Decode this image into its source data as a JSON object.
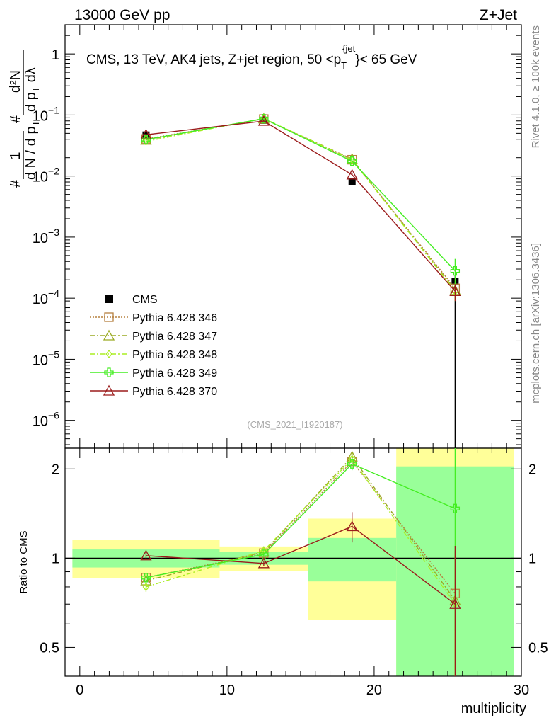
{
  "header": {
    "left": "13000 GeV pp",
    "right": "Z+Jet"
  },
  "side_notes": {
    "rivet": "Rivet 4.1.0, ≥ 100k events",
    "mcplots": "mcplots.cern.ch [arXiv:1306.3436]"
  },
  "analysis_tag": "(CMS_2021_I1920187)",
  "colors": {
    "data": "#000000",
    "p346": "#b5803f",
    "p347": "#9aaa22",
    "p348": "#aaee22",
    "p349": "#44ee22",
    "p370": "#9b1b1b",
    "band_inner": "#99ff99",
    "band_outer": "#ffff99"
  },
  "chart_data": [
    {
      "type": "line",
      "panel": "main",
      "title": "CMS, 13 TeV, AK4 jets, Z+jet region, 50 <p_T^{jet}< 65 GeV",
      "title_parts": {
        "prefix": "CMS, 13 TeV, AK4 jets, Z+jet region, 50 <p",
        "sub": "T",
        "sup": "{jet",
        "close": "}",
        "suffix": "< 65 GeV"
      },
      "ylabel": "1/(dN/dp_T) d²N/(dp_T dλ)",
      "ylabel_parts": {
        "one": "1",
        "num": "d²N",
        "hash": "#",
        "lambda": "dλ",
        "den_left": "d N / d p",
        "den_right": "d p",
        "sub": "T"
      },
      "yscale": "log",
      "ylim": [
        3.5e-07,
        3.0
      ],
      "xlim": [
        -1,
        30
      ],
      "y_ticks": [
        {
          "base": "10",
          "exp": "−6",
          "value": 1e-06
        },
        {
          "base": "10",
          "exp": "−5",
          "value": 1e-05
        },
        {
          "base": "10",
          "exp": "−4",
          "value": 0.0001
        },
        {
          "base": "10",
          "exp": "−3",
          "value": 0.001
        },
        {
          "base": "10",
          "exp": "−2",
          "value": 0.01
        },
        {
          "base": "10",
          "exp": "−1",
          "value": 0.1
        },
        {
          "base": "1",
          "exp": "",
          "value": 1
        }
      ],
      "legend_position": "lower-left",
      "data": {
        "name": "CMS",
        "x": [
          4.5,
          12.5,
          18.5,
          25.5
        ],
        "y": [
          0.047,
          0.082,
          0.0082,
          0.00019
        ],
        "yerr_low": [
          0.004,
          0.004,
          0.0008,
          0.00019
        ],
        "yerr_high": [
          0.004,
          0.004,
          0.0008,
          5e-05
        ]
      },
      "series": [
        {
          "name": "Pythia 6.428 346",
          "style": "dotted",
          "marker": "square",
          "x": [
            4.5,
            12.5,
            18.5,
            25.5
          ],
          "y": [
            0.0405,
            0.086,
            0.0185,
            0.000145
          ],
          "yerr": [
            0.001,
            0.0015,
            0.0005,
            4e-05
          ]
        },
        {
          "name": "Pythia 6.428 347",
          "style": "dashdot",
          "marker": "triangle",
          "x": [
            4.5,
            12.5,
            18.5,
            25.5
          ],
          "y": [
            0.039,
            0.087,
            0.019,
            0.000135
          ],
          "yerr": [
            0.001,
            0.0015,
            0.0005,
            4e-05
          ]
        },
        {
          "name": "Pythia 6.428 348",
          "style": "dashdot",
          "marker": "diamond",
          "x": [
            4.5,
            12.5,
            18.5,
            25.5
          ],
          "y": [
            0.037,
            0.088,
            0.0185,
            0.00013
          ],
          "yerr": [
            0.001,
            0.0015,
            0.0005,
            4e-05
          ]
        },
        {
          "name": "Pythia 6.428 349",
          "style": "solid",
          "marker": "cross",
          "x": [
            4.5,
            12.5,
            18.5,
            25.5
          ],
          "y": [
            0.0395,
            0.087,
            0.0175,
            0.00028
          ],
          "yerr": [
            0.001,
            0.0015,
            0.0005,
            0.00016
          ]
        },
        {
          "name": "Pythia 6.428 370",
          "style": "solid",
          "marker": "triangle",
          "x": [
            4.5,
            12.5,
            18.5,
            25.5
          ],
          "y": [
            0.0475,
            0.0795,
            0.0105,
            0.00013
          ],
          "yerr": [
            0.001,
            0.0015,
            0.0005,
            4e-05
          ]
        }
      ]
    },
    {
      "type": "line",
      "panel": "ratio",
      "ylabel": "Ratio to CMS",
      "xlabel": "multiplicity",
      "yscale": "log",
      "ylim": [
        0.4,
        2.35
      ],
      "xlim": [
        -1,
        30
      ],
      "reference": 1,
      "x_ticks": [
        0,
        10,
        20,
        30
      ],
      "y_ticks": [
        {
          "label": "0.5",
          "value": 0.5
        },
        {
          "label": "1",
          "value": 1
        },
        {
          "label": "2",
          "value": 2
        }
      ],
      "bands": [
        {
          "xmin": -0.5,
          "xmax": 9.5,
          "inner": [
            0.93,
            1.07
          ],
          "outer": [
            0.855,
            1.15
          ]
        },
        {
          "xmin": 9.5,
          "xmax": 15.5,
          "inner": [
            0.95,
            1.05
          ],
          "outer": [
            0.905,
            1.095
          ]
        },
        {
          "xmin": 15.5,
          "xmax": 21.5,
          "inner": [
            0.835,
            1.17
          ],
          "outer": [
            0.62,
            1.36
          ]
        },
        {
          "xmin": 21.5,
          "xmax": 29.5,
          "inner": [
            0.4,
            2.04
          ],
          "outer": [
            0.4,
            2.35
          ]
        }
      ],
      "series": [
        {
          "name": "Pythia 6.428 346",
          "x": [
            4.5,
            12.5,
            18.5,
            25.5
          ],
          "y": [
            0.86,
            1.04,
            2.12,
            0.76
          ],
          "yerr": [
            0.03,
            0.02,
            0.07,
            0.3
          ]
        },
        {
          "name": "Pythia 6.428 347",
          "x": [
            4.5,
            12.5,
            18.5,
            25.5
          ],
          "y": [
            0.84,
            1.05,
            2.2,
            0.72
          ],
          "yerr": [
            0.03,
            0.02,
            0.07,
            0.3
          ]
        },
        {
          "name": "Pythia 6.428 348",
          "x": [
            4.5,
            12.5,
            18.5,
            25.5
          ],
          "y": [
            0.8,
            1.06,
            2.16,
            0.7
          ],
          "yerr": [
            0.03,
            0.02,
            0.07,
            0.3
          ]
        },
        {
          "name": "Pythia 6.428 349",
          "x": [
            4.5,
            12.5,
            18.5,
            25.5
          ],
          "y": [
            0.86,
            1.03,
            2.08,
            1.47
          ],
          "yerr": [
            0.03,
            0.02,
            0.1,
            0.9
          ]
        },
        {
          "name": "Pythia 6.428 370",
          "x": [
            4.5,
            12.5,
            18.5,
            25.5
          ],
          "y": [
            1.02,
            0.96,
            1.28,
            0.7
          ],
          "yerr": [
            0.03,
            0.02,
            0.15,
            0.4
          ]
        }
      ]
    }
  ]
}
